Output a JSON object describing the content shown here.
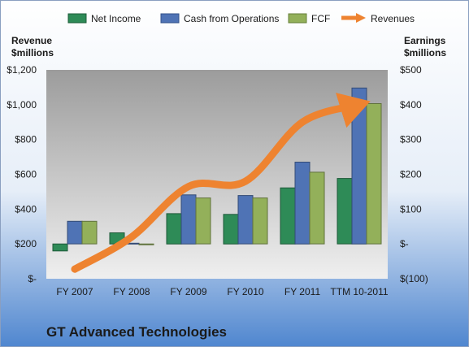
{
  "chart_data": {
    "type": "bar",
    "title": "GT Advanced Technologies",
    "categories": [
      "FY 2007",
      "FY 2008",
      "FY 2009",
      "FY 2010",
      "FY 2011",
      "TTM 10-2011"
    ],
    "left_axis": {
      "title_line1": "Revenue",
      "title_line2": "$millions",
      "ylim": [
        0,
        1200
      ],
      "ticks": [
        "$-",
        "$200",
        "$400",
        "$600",
        "$800",
        "$1,000",
        "$1,200"
      ]
    },
    "right_axis": {
      "title_line1": "Earnings",
      "title_line2": "$millions",
      "ylim": [
        -100,
        500
      ],
      "ticks": [
        "$(100)",
        "$-",
        "$100",
        "$200",
        "$300",
        "$400",
        "$500"
      ]
    },
    "series": [
      {
        "name": "Net Income",
        "axis": "right",
        "color": "#2e8b57",
        "values": [
          -20,
          32,
          87,
          85,
          161,
          188
        ]
      },
      {
        "name": "Cash from Operations",
        "axis": "right",
        "color": "#4f73b5",
        "values": [
          65,
          2,
          141,
          139,
          235,
          448
        ]
      },
      {
        "name": "FCF",
        "axis": "right",
        "color": "#93b05a",
        "values": [
          65,
          -1,
          132,
          132,
          206,
          403
        ]
      },
      {
        "name": "Revenues",
        "axis": "left",
        "type": "line",
        "color": "#ee8330",
        "values": [
          55,
          240,
          530,
          560,
          900,
          1000
        ]
      }
    ],
    "legend_position": "top",
    "grid": false
  }
}
